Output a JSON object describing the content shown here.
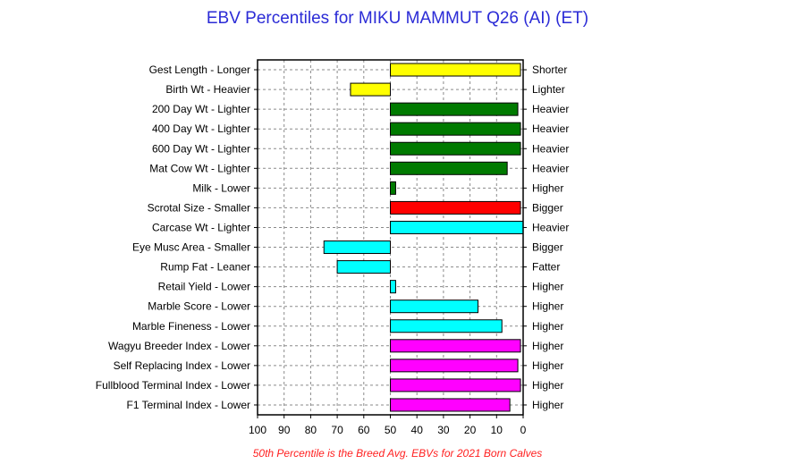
{
  "chart_data": {
    "type": "bar",
    "orientation": "horizontal",
    "title": "EBV Percentiles for MIKU MAMMUT Q26 (AI) (ET)",
    "footnote": "50th Percentile is the Breed Avg. EBVs for 2021 Born Calves",
    "xlim": [
      100,
      0
    ],
    "x_ticks": [
      "100",
      "90",
      "80",
      "70",
      "60",
      "50",
      "40",
      "30",
      "20",
      "10",
      "0"
    ],
    "baseline": 50,
    "grid": true,
    "categories": [
      "Gest Length - Longer",
      "Birth Wt - Heavier",
      "200 Day Wt - Lighter",
      "400 Day Wt - Lighter",
      "600 Day Wt - Lighter",
      "Mat Cow Wt - Lighter",
      "Milk - Lower",
      "Scrotal Size - Smaller",
      "Carcase Wt - Lighter",
      "Eye Musc Area - Smaller",
      "Rump Fat - Leaner",
      "Retail Yield - Lower",
      "Marble Score - Lower",
      "Marble Fineness - Lower",
      "Wagyu Breeder Index - Lower",
      "Self Replacing Index - Lower",
      "Fullblood Terminal Index - Lower",
      "F1 Terminal Index - Lower"
    ],
    "right_labels": [
      "Shorter",
      "Lighter",
      "Heavier",
      "Heavier",
      "Heavier",
      "Heavier",
      "Higher",
      "Bigger",
      "Heavier",
      "Bigger",
      "Fatter",
      "Higher",
      "Higher",
      "Higher",
      "Higher",
      "Higher",
      "Higher",
      "Higher"
    ],
    "values": [
      1,
      65,
      2,
      1,
      1,
      6,
      48,
      1,
      0,
      75,
      70,
      48,
      17,
      8,
      1,
      2,
      1,
      5
    ],
    "colors": [
      "#ffff00",
      "#ffff00",
      "#007a00",
      "#007a00",
      "#007a00",
      "#007a00",
      "#007a00",
      "#ff0000",
      "#00ffff",
      "#00ffff",
      "#00ffff",
      "#00ffff",
      "#00ffff",
      "#00ffff",
      "#ff00ff",
      "#ff00ff",
      "#ff00ff",
      "#ff00ff"
    ]
  }
}
